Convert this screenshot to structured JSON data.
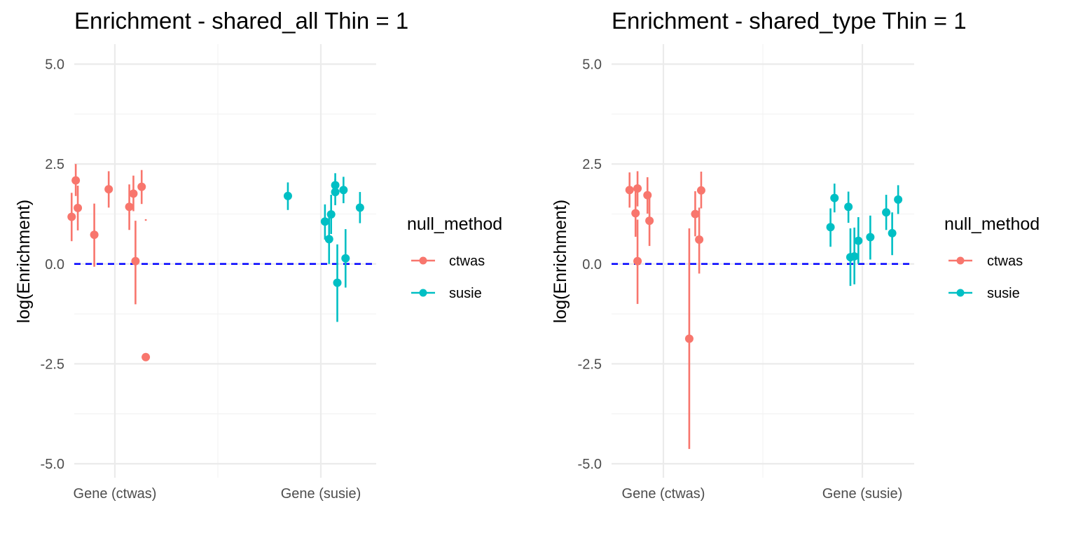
{
  "colors": {
    "ctwas": "#F8766D",
    "susie": "#00BFC4",
    "refline": "#0000FF",
    "grid_major": "#EBEBEB",
    "grid_minor": "#F3F3F3"
  },
  "legend": {
    "title": "null_method",
    "items": [
      {
        "label": "ctwas",
        "key": "ctwas"
      },
      {
        "label": "susie",
        "key": "susie"
      }
    ]
  },
  "chart_data": [
    {
      "type": "scatter",
      "title": "Enrichment - shared_all Thin = 1",
      "xlabel": "",
      "ylabel": "log(Enrichment)",
      "categories": [
        "Gene (ctwas)",
        "Gene (susie)"
      ],
      "ylim": [
        -5.35,
        5.5
      ],
      "yticks": [
        -5.0,
        -2.5,
        0.0,
        2.5,
        5.0
      ],
      "ytick_labels": [
        "-5.0",
        "-2.5",
        "0.0",
        "2.5",
        "5.0"
      ],
      "hline": 0,
      "series": [
        {
          "key": "ctwas",
          "points": [
            {
              "x": 0.79,
              "y": 1.18,
              "lo": 0.57,
              "hi": 1.78
            },
            {
              "x": 0.81,
              "y": 2.09,
              "lo": 1.7,
              "hi": 2.5
            },
            {
              "x": 0.82,
              "y": 1.4,
              "lo": 0.84,
              "hi": 1.96
            },
            {
              "x": 0.9,
              "y": 0.73,
              "lo": -0.07,
              "hi": 1.51
            },
            {
              "x": 0.97,
              "y": 1.87,
              "lo": 1.41,
              "hi": 2.32
            },
            {
              "x": 1.07,
              "y": 1.43,
              "lo": 0.85,
              "hi": 1.99
            },
            {
              "x": 1.09,
              "y": 1.76,
              "lo": 1.32,
              "hi": 2.21
            },
            {
              "x": 1.1,
              "y": 0.07,
              "lo": -1.01,
              "hi": 1.08
            },
            {
              "x": 1.13,
              "y": 1.93,
              "lo": 1.5,
              "hi": 2.35
            },
            {
              "x": 1.15,
              "y": -2.33,
              "lo": -2.33,
              "hi": -2.33
            },
            {
              "x": 1.15,
              "y": 1.1,
              "lo": 1.08,
              "hi": 1.12,
              "no_point": true
            }
          ]
        },
        {
          "key": "susie",
          "points": [
            {
              "x": 1.84,
              "y": 1.7,
              "lo": 1.35,
              "hi": 2.04
            },
            {
              "x": 2.02,
              "y": 1.06,
              "lo": 0.61,
              "hi": 1.49
            },
            {
              "x": 2.04,
              "y": 0.62,
              "lo": 0.0,
              "hi": 1.23
            },
            {
              "x": 2.05,
              "y": 1.24,
              "lo": 0.75,
              "hi": 1.73
            },
            {
              "x": 2.07,
              "y": 1.97,
              "lo": 1.71,
              "hi": 2.27
            },
            {
              "x": 2.07,
              "y": 1.8,
              "lo": 1.47,
              "hi": 2.13
            },
            {
              "x": 2.08,
              "y": -0.47,
              "lo": -1.45,
              "hi": 0.49
            },
            {
              "x": 2.11,
              "y": 1.85,
              "lo": 1.52,
              "hi": 2.18
            },
            {
              "x": 2.12,
              "y": 0.14,
              "lo": -0.59,
              "hi": 0.87
            },
            {
              "x": 2.19,
              "y": 1.41,
              "lo": 1.02,
              "hi": 1.8
            }
          ]
        }
      ]
    },
    {
      "type": "scatter",
      "title": "Enrichment - shared_type Thin = 1",
      "xlabel": "",
      "ylabel": "log(Enrichment)",
      "categories": [
        "Gene (ctwas)",
        "Gene (susie)"
      ],
      "ylim": [
        -5.35,
        5.5
      ],
      "yticks": [
        -5.0,
        -2.5,
        0.0,
        2.5,
        5.0
      ],
      "ytick_labels": [
        "-5.0",
        "-2.5",
        "0.0",
        "2.5",
        "5.0"
      ],
      "hline": 0,
      "series": [
        {
          "key": "ctwas",
          "points": [
            {
              "x": 0.83,
              "y": 1.85,
              "lo": 1.41,
              "hi": 2.29
            },
            {
              "x": 0.86,
              "y": 1.27,
              "lo": 0.68,
              "hi": 1.84
            },
            {
              "x": 0.87,
              "y": 1.89,
              "lo": 1.44,
              "hi": 2.32
            },
            {
              "x": 0.87,
              "y": 0.07,
              "lo": -1.0,
              "hi": 1.11
            },
            {
              "x": 0.92,
              "y": 1.72,
              "lo": 1.26,
              "hi": 2.17
            },
            {
              "x": 0.93,
              "y": 1.08,
              "lo": 0.45,
              "hi": 1.69
            },
            {
              "x": 1.13,
              "y": -1.87,
              "lo": -4.63,
              "hi": 0.89
            },
            {
              "x": 1.16,
              "y": 1.25,
              "lo": 0.69,
              "hi": 1.82
            },
            {
              "x": 1.18,
              "y": 0.61,
              "lo": -0.24,
              "hi": 1.41
            },
            {
              "x": 1.19,
              "y": 1.84,
              "lo": 1.39,
              "hi": 2.31
            }
          ]
        },
        {
          "key": "susie",
          "points": [
            {
              "x": 1.84,
              "y": 0.92,
              "lo": 0.43,
              "hi": 1.39
            },
            {
              "x": 1.86,
              "y": 1.65,
              "lo": 1.29,
              "hi": 2.01
            },
            {
              "x": 1.93,
              "y": 1.43,
              "lo": 1.03,
              "hi": 1.81
            },
            {
              "x": 1.94,
              "y": 0.17,
              "lo": -0.55,
              "hi": 0.89
            },
            {
              "x": 1.96,
              "y": 0.19,
              "lo": -0.51,
              "hi": 0.91
            },
            {
              "x": 1.98,
              "y": 0.58,
              "lo": 0.0,
              "hi": 1.17
            },
            {
              "x": 2.04,
              "y": 0.67,
              "lo": 0.11,
              "hi": 1.21
            },
            {
              "x": 2.12,
              "y": 1.29,
              "lo": 0.85,
              "hi": 1.73
            },
            {
              "x": 2.15,
              "y": 0.77,
              "lo": 0.22,
              "hi": 1.29
            },
            {
              "x": 2.18,
              "y": 1.61,
              "lo": 1.25,
              "hi": 1.97
            }
          ]
        }
      ]
    }
  ]
}
